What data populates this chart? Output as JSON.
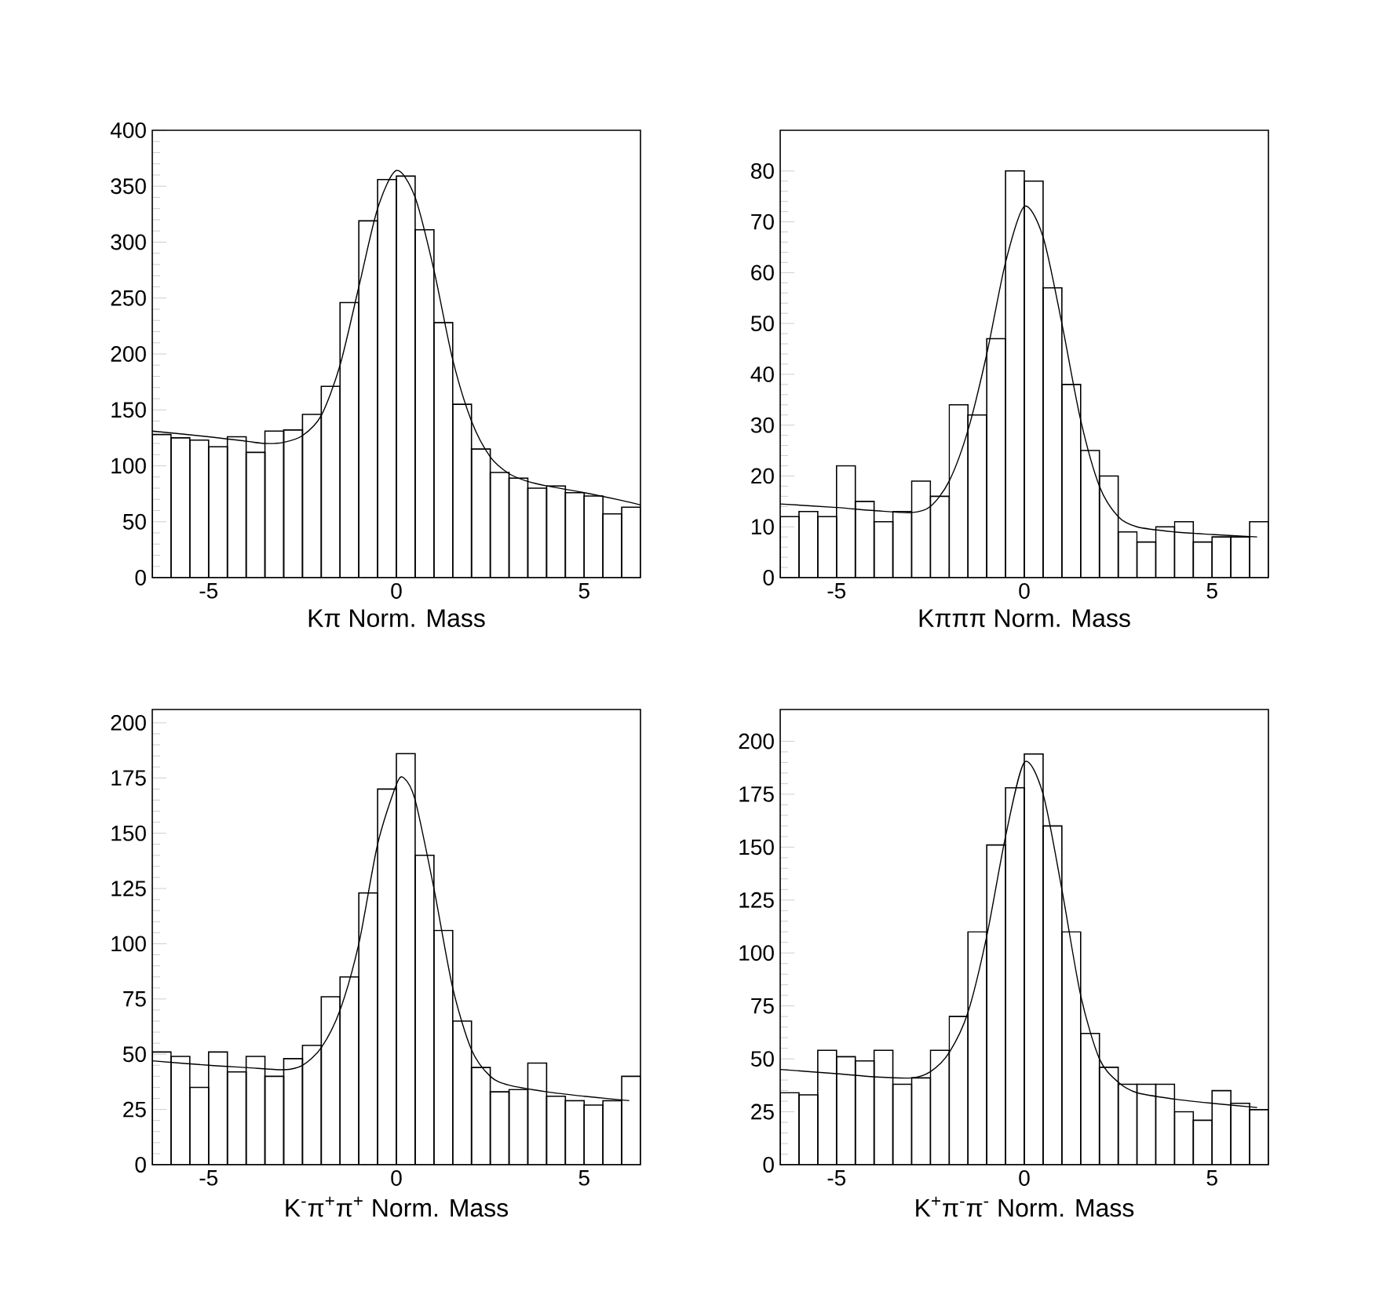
{
  "chart_data": [
    {
      "type": "histogram",
      "xlabel": "Kπ Norm. Mass",
      "color": "#000000",
      "xlim": [
        -6.5,
        6.5
      ],
      "ylim": [
        0,
        400
      ],
      "xticks": [
        -5,
        0,
        5
      ],
      "yticks": [
        0,
        50,
        100,
        150,
        200,
        250,
        300,
        350,
        400
      ],
      "bins": [
        -6.5,
        -6,
        -5.5,
        -5,
        -4.5,
        -4,
        -3.5,
        -3,
        -2.5,
        -2,
        -1.5,
        -1,
        -0.5,
        0,
        0.5,
        1,
        1.5,
        2,
        2.5,
        3,
        3.5,
        4,
        4.5,
        5,
        5.5,
        6,
        6.5
      ],
      "values": [
        128,
        125,
        123,
        117,
        126,
        112,
        131,
        132,
        146,
        171,
        246,
        319,
        356,
        359,
        311,
        228,
        155,
        115,
        94,
        89,
        80,
        82,
        76,
        73,
        57,
        63
      ],
      "series": [
        {
          "type": "line",
          "color": "#000000",
          "x": [
            -6.5,
            -5,
            -4,
            -3.5,
            -3,
            -2.5,
            -2,
            -1.5,
            -1,
            -0.5,
            0,
            0.5,
            1,
            1.5,
            2,
            2.5,
            3,
            3.5,
            4,
            5,
            6,
            6.5
          ],
          "values": [
            131,
            126,
            122,
            120,
            121,
            127,
            145,
            190,
            260,
            330,
            364,
            340,
            275,
            195,
            140,
            108,
            93,
            86,
            82,
            76,
            69,
            65
          ]
        }
      ]
    },
    {
      "type": "histogram",
      "xlabel": "Kπππ Norm. Mass",
      "color": "#000000",
      "xlim": [
        -6.5,
        6.5
      ],
      "ylim": [
        0,
        88
      ],
      "xticks": [
        -5,
        0,
        5
      ],
      "yticks": [
        0,
        10,
        20,
        30,
        40,
        50,
        60,
        70,
        80
      ],
      "bins": [
        -6.5,
        -6,
        -5.5,
        -5,
        -4.5,
        -4,
        -3.5,
        -3,
        -2.5,
        -2,
        -1.5,
        -1,
        -0.5,
        0,
        0.5,
        1,
        1.5,
        2,
        2.5,
        3,
        3.5,
        4,
        4.5,
        5,
        5.5,
        6,
        6.5
      ],
      "values": [
        12,
        13,
        12,
        22,
        15,
        11,
        13,
        19,
        16,
        34,
        32,
        47,
        80,
        78,
        57,
        38,
        25,
        20,
        9,
        7,
        10,
        11,
        7,
        8,
        8,
        11
      ],
      "series": [
        {
          "type": "line",
          "color": "#000000",
          "x": [
            -6.5,
            -5,
            -4,
            -3,
            -2.5,
            -2,
            -1.5,
            -1,
            -0.5,
            0,
            0.5,
            1,
            1.5,
            2,
            2.5,
            3,
            4,
            5,
            6.2
          ],
          "values": [
            14.5,
            13.8,
            13.2,
            12.8,
            14,
            19,
            29,
            44,
            62,
            73,
            67,
            50,
            31,
            18,
            12,
            10,
            9,
            8.5,
            8
          ]
        }
      ]
    },
    {
      "type": "histogram",
      "xlabel": "K$^{-}$π$^{+}$π$^{+}$ Norm. Mass",
      "color": "#000000",
      "xlim": [
        -6.5,
        6.5
      ],
      "ylim": [
        0,
        206
      ],
      "xticks": [
        -5,
        0,
        5
      ],
      "yticks": [
        0,
        25,
        50,
        75,
        100,
        125,
        150,
        175,
        200
      ],
      "bins": [
        -6.5,
        -6,
        -5.5,
        -5,
        -4.5,
        -4,
        -3.5,
        -3,
        -2.5,
        -2,
        -1.5,
        -1,
        -0.5,
        0,
        0.5,
        1,
        1.5,
        2,
        2.5,
        3,
        3.5,
        4,
        4.5,
        5,
        5.5,
        6,
        6.5
      ],
      "values": [
        51,
        49,
        35,
        51,
        42,
        49,
        40,
        48,
        54,
        76,
        85,
        123,
        170,
        186,
        140,
        106,
        65,
        44,
        33,
        34,
        46,
        31,
        29,
        27,
        29,
        40
      ],
      "series": [
        {
          "type": "line",
          "color": "#000000",
          "x": [
            -6.5,
            -5,
            -4,
            -3,
            -2.5,
            -2,
            -1.5,
            -1,
            -0.5,
            0,
            0.2,
            0.5,
            1,
            1.5,
            2,
            2.5,
            3,
            4,
            5,
            6.2
          ],
          "values": [
            47,
            45,
            44,
            43,
            45,
            53,
            70,
            100,
            145,
            172,
            175,
            165,
            125,
            80,
            52,
            40,
            36,
            33,
            31,
            29
          ]
        }
      ]
    },
    {
      "type": "histogram",
      "xlabel": "K$^{+}$π$^{-}$π$^{-}$ Norm. Mass",
      "color": "#000000",
      "xlim": [
        -6.5,
        6.5
      ],
      "ylim": [
        0,
        215
      ],
      "xticks": [
        -5,
        0,
        5
      ],
      "yticks": [
        0,
        25,
        50,
        75,
        100,
        125,
        150,
        175,
        200
      ],
      "bins": [
        -6.5,
        -6,
        -5.5,
        -5,
        -4.5,
        -4,
        -3.5,
        -3,
        -2.5,
        -2,
        -1.5,
        -1,
        -0.5,
        0,
        0.5,
        1,
        1.5,
        2,
        2.5,
        3,
        3.5,
        4,
        4.5,
        5,
        5.5,
        6,
        6.5
      ],
      "values": [
        34,
        33,
        54,
        51,
        49,
        54,
        38,
        41,
        54,
        70,
        110,
        151,
        178,
        194,
        160,
        110,
        62,
        46,
        38,
        38,
        38,
        25,
        21,
        35,
        29,
        26
      ],
      "series": [
        {
          "type": "line",
          "color": "#000000",
          "x": [
            -6.5,
            -5,
            -4,
            -3,
            -2.5,
            -2,
            -1.5,
            -1,
            -0.5,
            0,
            0.5,
            1,
            1.5,
            2,
            2.5,
            3,
            4,
            5,
            6.2
          ],
          "values": [
            45,
            43,
            41.5,
            41,
            44,
            53,
            72,
            108,
            155,
            190,
            175,
            130,
            80,
            50,
            39,
            34,
            31,
            29,
            27
          ]
        }
      ]
    }
  ]
}
